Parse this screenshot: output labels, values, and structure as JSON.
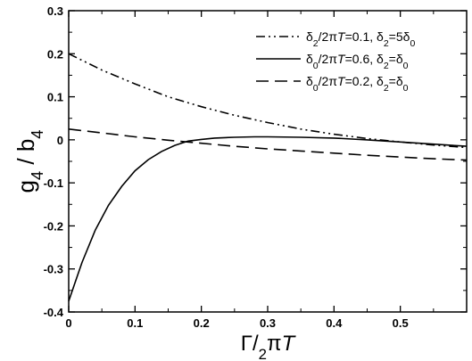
{
  "chart_data": {
    "type": "line",
    "title": "",
    "xlabel": "Γ/2πT",
    "ylabel": "g4 / b4",
    "xlim": [
      0,
      0.6
    ],
    "ylim": [
      -0.4,
      0.3
    ],
    "grid": false,
    "legend_position": "top-right",
    "x_ticks": [
      0,
      0.1,
      0.2,
      0.3,
      0.4,
      0.5
    ],
    "x_tick_labels": [
      "0",
      "0.1",
      "0.2",
      "0.3",
      "0.4",
      "0.5"
    ],
    "y_ticks": [
      -0.4,
      -0.3,
      -0.2,
      -0.1,
      0,
      0.1,
      0.2,
      0.3
    ],
    "y_tick_labels": [
      "-0.4",
      "-0.3",
      "-0.2",
      "-0.1",
      "0",
      "0.1",
      "0.2",
      "0.3"
    ],
    "series": [
      {
        "name": "δ2/2πT=0.1, δ2=5δ0",
        "style": "dash-dot-dot",
        "x": [
          0,
          0.05,
          0.1,
          0.15,
          0.2,
          0.25,
          0.3,
          0.35,
          0.4,
          0.45,
          0.5,
          0.55,
          0.6
        ],
        "y": [
          0.2,
          0.162,
          0.13,
          0.1,
          0.077,
          0.057,
          0.04,
          0.025,
          0.013,
          0.003,
          -0.005,
          -0.012,
          -0.018
        ]
      },
      {
        "name": "δ0/2πT=0.6, δ2=δ0",
        "style": "solid",
        "x": [
          0,
          0.01,
          0.02,
          0.04,
          0.06,
          0.08,
          0.1,
          0.12,
          0.14,
          0.16,
          0.18,
          0.2,
          0.22,
          0.25,
          0.28,
          0.3,
          0.35,
          0.4,
          0.45,
          0.5,
          0.55,
          0.6
        ],
        "y": [
          -0.375,
          -0.33,
          -0.285,
          -0.21,
          -0.152,
          -0.108,
          -0.072,
          -0.046,
          -0.027,
          -0.013,
          -0.003,
          0.001,
          0.004,
          0.006,
          0.007,
          0.007,
          0.006,
          0.004,
          0.0,
          -0.005,
          -0.01,
          -0.015
        ]
      },
      {
        "name": "δ0/2πT=0.2, δ2=δ0",
        "style": "dashed",
        "x": [
          0,
          0.05,
          0.1,
          0.15,
          0.2,
          0.25,
          0.3,
          0.35,
          0.4,
          0.45,
          0.5,
          0.55,
          0.6
        ],
        "y": [
          0.025,
          0.016,
          0.007,
          -0.001,
          -0.008,
          -0.015,
          -0.021,
          -0.026,
          -0.031,
          -0.036,
          -0.04,
          -0.044,
          -0.047
        ]
      }
    ]
  }
}
